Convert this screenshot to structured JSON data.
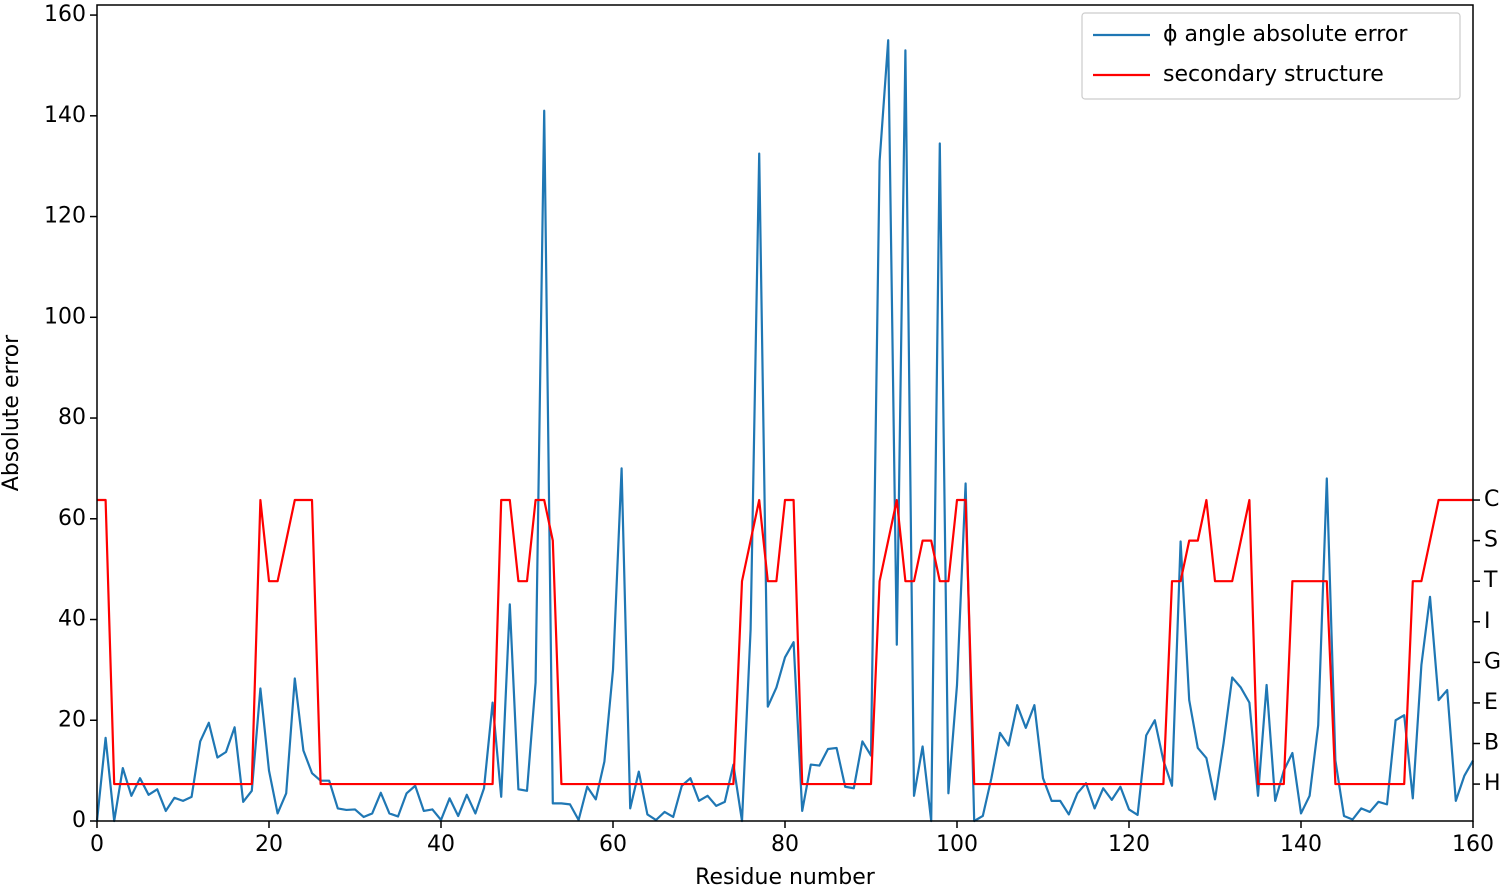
{
  "chart_data": {
    "type": "line",
    "xlabel": "Residue number",
    "ylabel": "Absolute error",
    "x": [
      0,
      1,
      2,
      3,
      4,
      5,
      6,
      7,
      8,
      9,
      10,
      11,
      12,
      13,
      14,
      15,
      16,
      17,
      18,
      19,
      20,
      21,
      22,
      23,
      24,
      25,
      26,
      27,
      28,
      29,
      30,
      31,
      32,
      33,
      34,
      35,
      36,
      37,
      38,
      39,
      40,
      41,
      42,
      43,
      44,
      45,
      46,
      47,
      48,
      49,
      50,
      51,
      52,
      53,
      54,
      55,
      56,
      57,
      58,
      59,
      60,
      61,
      62,
      63,
      64,
      65,
      66,
      67,
      68,
      69,
      70,
      71,
      72,
      73,
      74,
      75,
      76,
      77,
      78,
      79,
      80,
      81,
      82,
      83,
      84,
      85,
      86,
      87,
      88,
      89,
      90,
      91,
      92,
      93,
      94,
      95,
      96,
      97,
      98,
      99,
      100,
      101,
      102,
      103,
      104,
      105,
      106,
      107,
      108,
      109,
      110,
      111,
      112,
      113,
      114,
      115,
      116,
      117,
      118,
      119,
      120,
      121,
      122,
      123,
      124,
      125,
      126,
      127,
      128,
      129,
      130,
      131,
      132,
      133,
      134,
      135,
      136,
      137,
      138,
      139,
      140,
      141,
      142,
      143,
      144,
      145,
      146,
      147,
      148,
      149,
      150,
      151,
      152,
      153,
      154,
      155,
      156,
      157,
      158,
      159,
      160
    ],
    "series": [
      {
        "name": "ϕ angle absolute error",
        "color": "#1f77b4",
        "values": [
          0,
          16.5,
          0,
          10.5,
          5,
          8.5,
          5.2,
          6.3,
          2,
          4.6,
          4,
          4.8,
          15.8,
          19.5,
          12.6,
          13.7,
          18.6,
          3.8,
          6,
          26.3,
          10,
          1.5,
          5.5,
          28.3,
          14,
          9.5,
          8,
          8,
          2.5,
          2.2,
          2.3,
          0.8,
          1.5,
          5.6,
          1.5,
          0.9,
          5.5,
          7,
          2,
          2.3,
          0.2,
          4.5,
          1,
          5.2,
          1.5,
          6.5,
          23.5,
          4.8,
          43,
          6.3,
          6,
          27.5,
          141,
          3.5,
          3.5,
          3.3,
          0.2,
          6.8,
          4.3,
          11.8,
          30,
          70,
          2.5,
          9.8,
          1.3,
          0.2,
          1.8,
          0.8,
          7,
          8.5,
          4,
          5,
          3,
          3.8,
          11.2,
          0,
          38,
          132.5,
          22.7,
          26.5,
          32.5,
          35.5,
          2,
          11.2,
          11,
          14.3,
          14.5,
          6.8,
          6.5,
          15.8,
          13,
          131,
          155,
          35,
          153,
          5,
          14.8,
          0,
          134.5,
          5.5,
          27,
          67,
          0,
          1,
          8.5,
          17.5,
          15,
          23,
          18.5,
          23,
          8.5,
          4,
          4,
          1.3,
          5.5,
          7.5,
          2.5,
          6.5,
          4.2,
          6.8,
          2.3,
          1.2,
          17,
          20,
          12,
          7,
          55.5,
          24,
          14.5,
          12.5,
          4.3,
          15.5,
          28.5,
          26.5,
          23.5,
          5,
          27,
          4,
          10,
          13.5,
          1.5,
          5,
          19,
          68,
          12,
          1,
          0.3,
          2.5,
          1.8,
          3.8,
          3.3,
          20,
          21,
          4.5,
          31,
          44.5,
          24,
          26,
          4,
          9,
          12
        ]
      },
      {
        "name": "secondary structure",
        "color": "#ff0000",
        "axis": "y2",
        "values": [
          7,
          7,
          0,
          0,
          0,
          0,
          0,
          0,
          0,
          0,
          0,
          0,
          0,
          0,
          0,
          0,
          0,
          0,
          0,
          7,
          5,
          5,
          6,
          7,
          7,
          7,
          0,
          0,
          0,
          0,
          0,
          0,
          0,
          0,
          0,
          0,
          0,
          0,
          0,
          0,
          0,
          0,
          0,
          0,
          0,
          0,
          0,
          7,
          7,
          5,
          5,
          7,
          7,
          6,
          0,
          0,
          0,
          0,
          0,
          0,
          0,
          0,
          0,
          0,
          0,
          0,
          0,
          0,
          0,
          0,
          0,
          0,
          0,
          0,
          0,
          5,
          6,
          7,
          5,
          5,
          7,
          7,
          0,
          0,
          0,
          0,
          0,
          0,
          0,
          0,
          0,
          5,
          6,
          7,
          5,
          5,
          6,
          6,
          5,
          5,
          7,
          7,
          0,
          0,
          0,
          0,
          0,
          0,
          0,
          0,
          0,
          0,
          0,
          0,
          0,
          0,
          0,
          0,
          0,
          0,
          0,
          0,
          0,
          0,
          0,
          5,
          5,
          6,
          6,
          7,
          5,
          5,
          5,
          6,
          7,
          0,
          0,
          0,
          0,
          5,
          5,
          5,
          5,
          5,
          0,
          0,
          0,
          0,
          0,
          0,
          0,
          0,
          0,
          5,
          5,
          6,
          7,
          7,
          7,
          7,
          7
        ]
      }
    ],
    "xlim": [
      0,
      160
    ],
    "xticks": [
      0,
      20,
      40,
      60,
      80,
      100,
      120,
      140,
      160
    ],
    "ylim": [
      0,
      162
    ],
    "yticks": [
      0,
      20,
      40,
      60,
      80,
      100,
      120,
      140,
      160
    ],
    "y2lim": [
      -0.91,
      19.2
    ],
    "y2ticks": [
      {
        "value": 0,
        "label": "H"
      },
      {
        "value": 1,
        "label": "B"
      },
      {
        "value": 2,
        "label": "E"
      },
      {
        "value": 3,
        "label": "G"
      },
      {
        "value": 4,
        "label": "I"
      },
      {
        "value": 5,
        "label": "T"
      },
      {
        "value": 6,
        "label": "S"
      },
      {
        "value": 7,
        "label": "C"
      }
    ],
    "legend": "upper right"
  }
}
